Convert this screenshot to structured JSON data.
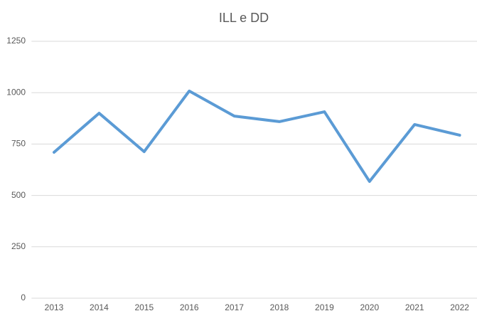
{
  "chart_data": {
    "type": "line",
    "title": "ILL e DD",
    "categories": [
      "2013",
      "2014",
      "2015",
      "2016",
      "2017",
      "2018",
      "2019",
      "2020",
      "2021",
      "2022"
    ],
    "series": [
      {
        "name": "ILL e DD",
        "color": "#5b9bd5",
        "values": [
          710,
          900,
          713,
          1008,
          886,
          859,
          907,
          568,
          845,
          793
        ]
      }
    ],
    "ylim": [
      0,
      1250
    ],
    "yticks": [
      0,
      250,
      500,
      750,
      1000,
      1250
    ],
    "grid": true
  }
}
